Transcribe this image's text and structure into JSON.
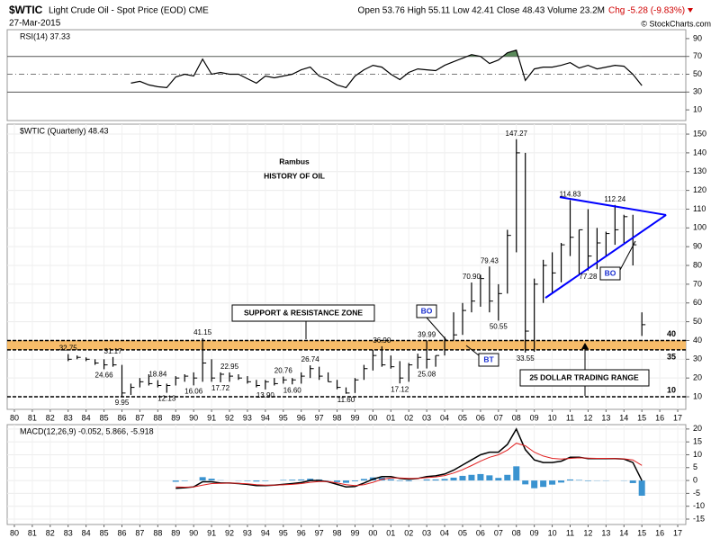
{
  "header": {
    "symbol": "$WTIC",
    "name": "Light Crude Oil - Spot Price (EOD) CME",
    "date": "27-Mar-2015",
    "stats": "Open 53.76 High 55.11 Low 42.41 Close 48.43 Volume 23.2M",
    "change": "Chg -5.28 (-9.83%)",
    "credit": "© StockCharts.com"
  },
  "chart_data": [
    {
      "type": "line",
      "title": "RSI(14) 37.33",
      "color": "#000000",
      "x": [
        1986.5,
        1987,
        1987.5,
        1988,
        1988.5,
        1989,
        1989.5,
        1990,
        1990.5,
        1991,
        1991.5,
        1992,
        1992.5,
        1993,
        1993.5,
        1994,
        1994.5,
        1995,
        1995.5,
        1996,
        1996.5,
        1997,
        1997.5,
        1998,
        1998.5,
        1999,
        1999.5,
        2000,
        2000.5,
        2001,
        2001.5,
        2002,
        2002.5,
        2003,
        2003.5,
        2004,
        2004.5,
        2005,
        2005.5,
        2006,
        2006.5,
        2007,
        2007.5,
        2008,
        2008.5,
        2009,
        2009.5,
        2010,
        2010.5,
        2011,
        2011.5,
        2012,
        2012.5,
        2013,
        2013.5,
        2014,
        2014.5,
        2015
      ],
      "values": [
        40,
        42,
        38,
        36,
        35,
        47,
        50,
        48,
        67,
        50,
        52,
        50,
        50,
        45,
        40,
        48,
        46,
        48,
        50,
        55,
        58,
        48,
        44,
        38,
        35,
        48,
        55,
        60,
        58,
        50,
        44,
        52,
        56,
        55,
        54,
        60,
        64,
        68,
        72,
        70,
        62,
        66,
        74,
        77,
        43,
        56,
        58,
        58,
        60,
        63,
        57,
        60,
        56,
        58,
        60,
        59,
        50,
        37.33
      ],
      "xlim": [
        1979.6,
        2017.45
      ],
      "ylim": [
        -2,
        100
      ],
      "yticks": [
        10,
        30,
        50,
        70,
        90
      ],
      "levels": [
        70,
        30
      ],
      "midline": 50,
      "fill_above": 70,
      "fill_color": "#5b8a5b"
    },
    {
      "type": "ohlc",
      "title": "$WTIC (Quarterly) 48.43",
      "color": "#000000",
      "x": [
        1983,
        1983.5,
        1984,
        1984.5,
        1985,
        1985.5,
        1986,
        1986.5,
        1987,
        1987.5,
        1988,
        1988.5,
        1989,
        1989.5,
        1990,
        1990.5,
        1991,
        1991.5,
        1992,
        1992.5,
        1993,
        1993.5,
        1994,
        1994.5,
        1995,
        1995.5,
        1996,
        1996.5,
        1997,
        1997.5,
        1998,
        1998.5,
        1999,
        1999.5,
        2000,
        2000.5,
        2001,
        2001.5,
        2002,
        2002.5,
        2003,
        2003.5,
        2004,
        2004.5,
        2005,
        2005.5,
        2006,
        2006.5,
        2007,
        2007.5,
        2008,
        2008.5,
        2009,
        2009.5,
        2010,
        2010.5,
        2011,
        2011.5,
        2012,
        2012.5,
        2013,
        2013.5,
        2014,
        2014.5,
        2015
      ],
      "high": [
        32.75,
        32,
        31,
        30,
        30,
        31.17,
        27,
        17,
        20,
        22,
        18.84,
        17,
        21,
        22,
        23,
        41.15,
        30,
        23,
        22.95,
        22,
        21,
        19,
        19,
        20,
        20.76,
        20,
        23,
        26.74,
        26,
        23,
        19,
        15,
        20,
        27,
        35,
        36.9,
        32,
        29,
        28,
        33,
        39.99,
        32,
        42,
        55,
        60,
        70.9,
        75,
        79.43,
        70,
        99,
        147.27,
        140,
        73,
        83,
        87,
        92,
        114.83,
        99,
        110,
        100,
        98,
        112.24,
        107,
        107,
        55
      ],
      "low": [
        29,
        30,
        29,
        27,
        24.66,
        26,
        9.95,
        11,
        15,
        16,
        15,
        12.13,
        16,
        18,
        16.06,
        18,
        18,
        17.72,
        18,
        19,
        17,
        15,
        13.9,
        16,
        17,
        16.6,
        17,
        20,
        19,
        18,
        14,
        11.6,
        12,
        19,
        24,
        26,
        25,
        17.12,
        18,
        25,
        25.08,
        26,
        32,
        40,
        43,
        55,
        58,
        55,
        50.55,
        65,
        87,
        33.55,
        34,
        60,
        65,
        71,
        85,
        75,
        77.28,
        78,
        85,
        91,
        92,
        80,
        42.41
      ],
      "close": [
        30,
        31,
        30,
        28,
        27,
        27,
        12,
        15,
        18,
        17,
        16,
        16,
        20,
        21,
        20,
        28,
        20,
        22,
        21,
        20,
        18,
        16,
        18,
        17,
        19,
        19,
        21,
        25,
        21,
        18,
        15,
        12,
        19,
        25,
        32,
        27,
        26,
        20,
        27,
        31,
        30,
        32,
        40,
        43,
        56,
        61,
        73,
        61,
        65,
        96,
        140,
        45,
        70,
        80,
        76,
        91,
        95,
        99,
        85,
        92,
        97,
        99,
        106,
        91,
        48.43
      ],
      "xlim": [
        1979.6,
        2017.45
      ],
      "ylim": [
        3.3,
        155.3
      ],
      "grid": true,
      "yticks": [
        10,
        20,
        30,
        40,
        50,
        60,
        70,
        80,
        90,
        100,
        110,
        120,
        130,
        140,
        150
      ],
      "xticks": [
        {
          "value": 1980,
          "label": "80"
        },
        {
          "value": 1981,
          "label": "81"
        },
        {
          "value": 1982,
          "label": "82"
        },
        {
          "value": 1983,
          "label": "83"
        },
        {
          "value": 1984,
          "label": "84"
        },
        {
          "value": 1985,
          "label": "85"
        },
        {
          "value": 1986,
          "label": "86"
        },
        {
          "value": 1987,
          "label": "87"
        },
        {
          "value": 1988,
          "label": "88"
        },
        {
          "value": 1989,
          "label": "89"
        },
        {
          "value": 1990,
          "label": "90"
        },
        {
          "value": 1991,
          "label": "91"
        },
        {
          "value": 1992,
          "label": "92"
        },
        {
          "value": 1993,
          "label": "93"
        },
        {
          "value": 1994,
          "label": "94"
        },
        {
          "value": 1995,
          "label": "95"
        },
        {
          "value": 1996,
          "label": "96"
        },
        {
          "value": 1997,
          "label": "97"
        },
        {
          "value": 1998,
          "label": "98"
        },
        {
          "value": 1999,
          "label": "99"
        },
        {
          "value": 2000,
          "label": "00"
        },
        {
          "value": 2001,
          "label": "01"
        },
        {
          "value": 2002,
          "label": "02"
        },
        {
          "value": 2003,
          "label": "03"
        },
        {
          "value": 2004,
          "label": "04"
        },
        {
          "value": 2005,
          "label": "05"
        },
        {
          "value": 2006,
          "label": "06"
        },
        {
          "value": 2007,
          "label": "07"
        },
        {
          "value": 2008,
          "label": "08"
        },
        {
          "value": 2009,
          "label": "09"
        },
        {
          "value": 2010,
          "label": "10"
        },
        {
          "value": 2011,
          "label": "11"
        },
        {
          "value": 2012,
          "label": "12"
        },
        {
          "value": 2013,
          "label": "13"
        },
        {
          "value": 2014,
          "label": "14"
        },
        {
          "value": 2015,
          "label": "15"
        },
        {
          "value": 2016,
          "label": "16"
        },
        {
          "value": 2017,
          "label": "17"
        }
      ],
      "price_labels": [
        {
          "x": 1983,
          "value": 32.75,
          "label": "32.75"
        },
        {
          "x": 1985.5,
          "value": 31.17,
          "label": "31.17"
        },
        {
          "x": 1985,
          "value": 24.66,
          "label": "24.66"
        },
        {
          "x": 1986,
          "value": 9.95,
          "label": "9.95"
        },
        {
          "x": 1988,
          "value": 18.84,
          "label": "18.84"
        },
        {
          "x": 1988.5,
          "value": 12.13,
          "label": "12.13"
        },
        {
          "x": 1990,
          "value": 16.06,
          "label": "16.06"
        },
        {
          "x": 1990.5,
          "value": 41.15,
          "label": "41.15"
        },
        {
          "x": 1991.5,
          "value": 17.72,
          "label": "17.72"
        },
        {
          "x": 1992,
          "value": 22.95,
          "label": "22.95"
        },
        {
          "x": 1994,
          "value": 13.9,
          "label": "13.90"
        },
        {
          "x": 1995,
          "value": 20.76,
          "label": "20.76"
        },
        {
          "x": 1995.5,
          "value": 16.6,
          "label": "16.60"
        },
        {
          "x": 1996.5,
          "value": 26.74,
          "label": "26.74"
        },
        {
          "x": 1998.5,
          "value": 11.6,
          "label": "11.60"
        },
        {
          "x": 2000.5,
          "value": 36.9,
          "label": "36.90"
        },
        {
          "x": 2001.5,
          "value": 17.12,
          "label": "17.12"
        },
        {
          "x": 2003,
          "value": 39.99,
          "label": "39.99"
        },
        {
          "x": 2003,
          "value": 25.08,
          "label": "25.08"
        },
        {
          "x": 2005.5,
          "value": 70.9,
          "label": "70.90"
        },
        {
          "x": 2006.5,
          "value": 79.43,
          "label": "79.43"
        },
        {
          "x": 2007,
          "value": 50.55,
          "label": "50.55"
        },
        {
          "x": 2008,
          "value": 147.27,
          "label": "147.27"
        },
        {
          "x": 2008.5,
          "value": 33.55,
          "label": "33.55"
        },
        {
          "x": 2011,
          "value": 114.83,
          "label": "114.83"
        },
        {
          "x": 2012,
          "value": 77.28,
          "label": "77.28"
        },
        {
          "x": 2013.5,
          "value": 112.24,
          "label": "112.24"
        }
      ],
      "levels": [
        40,
        35,
        10
      ],
      "band": [
        35,
        40
      ],
      "band_color": "#f6b04f",
      "trendlines": [
        {
          "color": "#0000ff",
          "x": [
            2010.42,
            2016.35
          ],
          "y": [
            116.4,
            106.9
          ]
        },
        {
          "color": "#0000ff",
          "x": [
            2009.62,
            2016.35
          ],
          "y": [
            62.7,
            106.9
          ]
        }
      ],
      "annotations": [
        "Rambus",
        "HISTORY OF OIL",
        "SUPPORT & RESISTANCE ZONE",
        "BO",
        "BT",
        "BO",
        "25 DOLLAR TRADING RANGE"
      ]
    },
    {
      "type": "macd",
      "title": "MACD(12,26,9) -0.052, 5.866, -5.918",
      "x": [
        1989,
        1989.5,
        1990,
        1990.5,
        1991,
        1991.5,
        1992,
        1992.5,
        1993,
        1993.5,
        1994,
        1994.5,
        1995,
        1995.5,
        1996,
        1996.5,
        1997,
        1997.5,
        1998,
        1998.5,
        1999,
        1999.5,
        2000,
        2000.5,
        2001,
        2001.5,
        2002,
        2002.5,
        2003,
        2003.5,
        2004,
        2004.5,
        2005,
        2005.5,
        2006,
        2006.5,
        2007,
        2007.5,
        2008,
        2008.5,
        2009,
        2009.5,
        2010,
        2010.5,
        2011,
        2011.5,
        2012,
        2012.5,
        2013,
        2013.5,
        2014,
        2014.5,
        2015
      ],
      "series": [
        {
          "color": "#000000",
          "values": [
            -3,
            -2.8,
            -2.5,
            -0.5,
            -0.5,
            -1,
            -1,
            -1.2,
            -1.5,
            -2,
            -2,
            -1.8,
            -1.5,
            -1.2,
            -0.8,
            0,
            0,
            -0.5,
            -1.5,
            -2.5,
            -2.3,
            -1,
            0.5,
            1.5,
            1.5,
            0.8,
            0.5,
            0.8,
            1.5,
            1.8,
            2.5,
            4,
            6,
            8,
            10,
            11,
            11,
            14,
            20,
            12,
            8,
            7,
            7,
            7.5,
            9,
            9,
            8.5,
            8.5,
            8.5,
            8.5,
            8.3,
            7,
            -0.052
          ]
        },
        {
          "color": "#e02020",
          "values": [
            -2.5,
            -2.6,
            -2.5,
            -1.8,
            -1.2,
            -1.1,
            -1,
            -1.1,
            -1.3,
            -1.6,
            -1.8,
            -1.8,
            -1.7,
            -1.5,
            -1.2,
            -0.7,
            -0.4,
            -0.4,
            -0.9,
            -1.6,
            -2,
            -1.6,
            -0.7,
            0.4,
            1,
            1,
            0.8,
            0.8,
            1.1,
            1.4,
            1.9,
            2.9,
            4.2,
            5.8,
            7.5,
            9,
            10,
            11.8,
            14.5,
            13.5,
            11,
            9.5,
            8.6,
            8.3,
            8.6,
            8.8,
            8.7,
            8.6,
            8.6,
            8.5,
            8.4,
            8,
            5.866
          ]
        }
      ],
      "histogram": {
        "color": "#3a93d0",
        "values": [
          -0.5,
          -0.2,
          0,
          1.3,
          0.7,
          0.1,
          0,
          -0.1,
          -0.2,
          -0.4,
          -0.2,
          0,
          0.2,
          0.3,
          0.4,
          0.7,
          0.4,
          -0.1,
          -0.6,
          -0.9,
          -0.3,
          0.6,
          1.2,
          1.1,
          0.5,
          -0.2,
          -0.3,
          0,
          0.4,
          0.4,
          0.6,
          1.1,
          1.8,
          2.2,
          2.5,
          2,
          1,
          2.2,
          5.5,
          -1.5,
          -3,
          -2.5,
          -1.6,
          -0.8,
          0.4,
          0.2,
          -0.2,
          -0.1,
          -0.1,
          0,
          -0.1,
          -1,
          -5.918
        ]
      },
      "xlim": [
        1979.6,
        2017.45
      ],
      "ylim": [
        -17.1,
        21.7
      ],
      "grid": true,
      "yticks": [
        -15,
        -10,
        -5,
        0,
        5,
        10,
        15,
        20
      ],
      "xticks": [
        {
          "value": 1980,
          "label": "80"
        },
        {
          "value": 1981,
          "label": "81"
        },
        {
          "value": 1982,
          "label": "82"
        },
        {
          "value": 1983,
          "label": "83"
        },
        {
          "value": 1984,
          "label": "84"
        },
        {
          "value": 1985,
          "label": "85"
        },
        {
          "value": 1986,
          "label": "86"
        },
        {
          "value": 1987,
          "label": "87"
        },
        {
          "value": 1988,
          "label": "88"
        },
        {
          "value": 1989,
          "label": "89"
        },
        {
          "value": 1990,
          "label": "90"
        },
        {
          "value": 1991,
          "label": "91"
        },
        {
          "value": 1992,
          "label": "92"
        },
        {
          "value": 1993,
          "label": "93"
        },
        {
          "value": 1994,
          "label": "94"
        },
        {
          "value": 1995,
          "label": "95"
        },
        {
          "value": 1996,
          "label": "96"
        },
        {
          "value": 1997,
          "label": "97"
        },
        {
          "value": 1998,
          "label": "98"
        },
        {
          "value": 1999,
          "label": "99"
        },
        {
          "value": 2000,
          "label": "00"
        },
        {
          "value": 2001,
          "label": "01"
        },
        {
          "value": 2002,
          "label": "02"
        },
        {
          "value": 2003,
          "label": "03"
        },
        {
          "value": 2004,
          "label": "04"
        },
        {
          "value": 2005,
          "label": "05"
        },
        {
          "value": 2006,
          "label": "06"
        },
        {
          "value": 2007,
          "label": "07"
        },
        {
          "value": 2008,
          "label": "08"
        },
        {
          "value": 2009,
          "label": "09"
        },
        {
          "value": 2010,
          "label": "10"
        },
        {
          "value": 2011,
          "label": "11"
        },
        {
          "value": 2012,
          "label": "12"
        },
        {
          "value": 2013,
          "label": "13"
        },
        {
          "value": 2014,
          "label": "14"
        },
        {
          "value": 2015,
          "label": "15"
        },
        {
          "value": 2016,
          "label": "16"
        },
        {
          "value": 2017,
          "label": "17"
        }
      ]
    }
  ]
}
